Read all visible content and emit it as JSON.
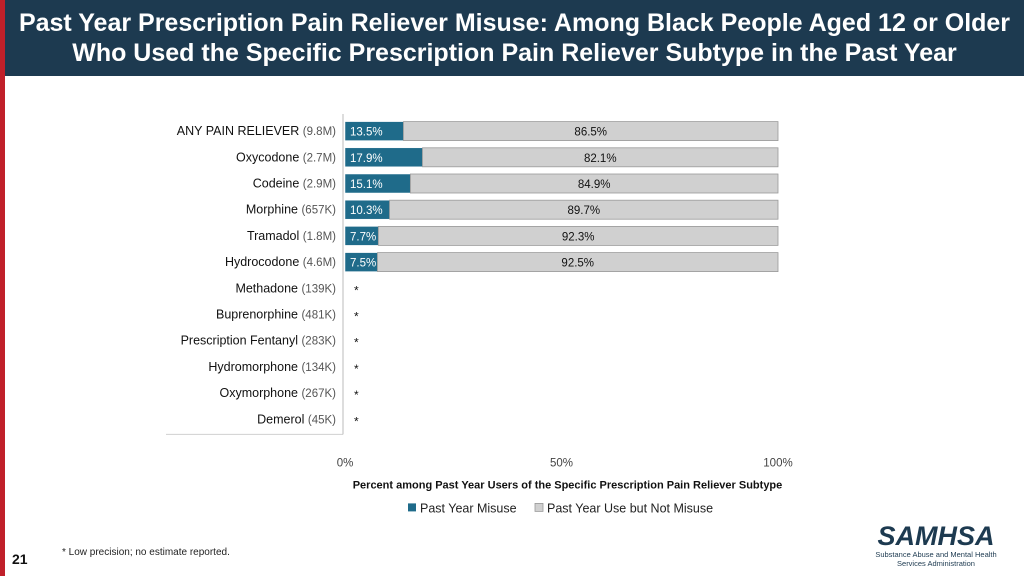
{
  "header": {
    "title_line1": "Past Year Prescription Pain Reliever Misuse: Among Black People Aged 12 or Older",
    "title_line2": "Who Used the Specific Prescription Pain Reliever Subtype in the Past Year"
  },
  "colors": {
    "misuse": "#1f6b8a",
    "not_misuse": "#d0d0d0",
    "header_bg": "#1d3a50",
    "accent_red": "#c0202a"
  },
  "chart_data": {
    "type": "bar",
    "orientation": "horizontal",
    "stacked": true,
    "categories": [
      {
        "name": "ANY PAIN RELIEVER",
        "count": "(9.8M)"
      },
      {
        "name": "Oxycodone",
        "count": "(2.7M)"
      },
      {
        "name": "Codeine",
        "count": "(2.9M)"
      },
      {
        "name": "Morphine",
        "count": "(657K)"
      },
      {
        "name": "Tramadol",
        "count": "(1.8M)"
      },
      {
        "name": "Hydrocodone",
        "count": "(4.6M)"
      },
      {
        "name": "Methadone",
        "count": "(139K)"
      },
      {
        "name": "Buprenorphine",
        "count": "(481K)"
      },
      {
        "name": "Prescription Fentanyl",
        "count": "(283K)"
      },
      {
        "name": "Hydromorphone",
        "count": "(134K)"
      },
      {
        "name": "Oxymorphone",
        "count": "(267K)"
      },
      {
        "name": "Demerol",
        "count": "(45K)"
      }
    ],
    "series": [
      {
        "name": "Past Year Misuse",
        "values": [
          13.5,
          17.9,
          15.1,
          10.3,
          7.7,
          7.5,
          null,
          null,
          null,
          null,
          null,
          null
        ],
        "labels": [
          "13.5%",
          "17.9%",
          "15.1%",
          "10.3%",
          "7.7%",
          "7.5%",
          "*",
          "*",
          "*",
          "*",
          "*",
          "*"
        ]
      },
      {
        "name": "Past Year Use but Not Misuse",
        "values": [
          86.5,
          82.1,
          84.9,
          89.7,
          92.3,
          92.5,
          null,
          null,
          null,
          null,
          null,
          null
        ],
        "labels": [
          "86.5%",
          "82.1%",
          "84.9%",
          "89.7%",
          "92.3%",
          "92.5%",
          "",
          "",
          "",
          "",
          "",
          ""
        ]
      }
    ],
    "xlim": [
      0,
      100
    ],
    "xticks": [
      "0%",
      "50%",
      "100%"
    ],
    "xlabel": "Percent among Past Year Users of the Specific Prescription Pain Reliever Subtype",
    "legend_position": "bottom"
  },
  "footer": {
    "footnote": "* Low precision; no estimate reported.",
    "page_number": "21",
    "logo_word": "SAMHSA",
    "logo_sub1": "Substance Abuse and Mental Health",
    "logo_sub2": "Services Administration"
  }
}
